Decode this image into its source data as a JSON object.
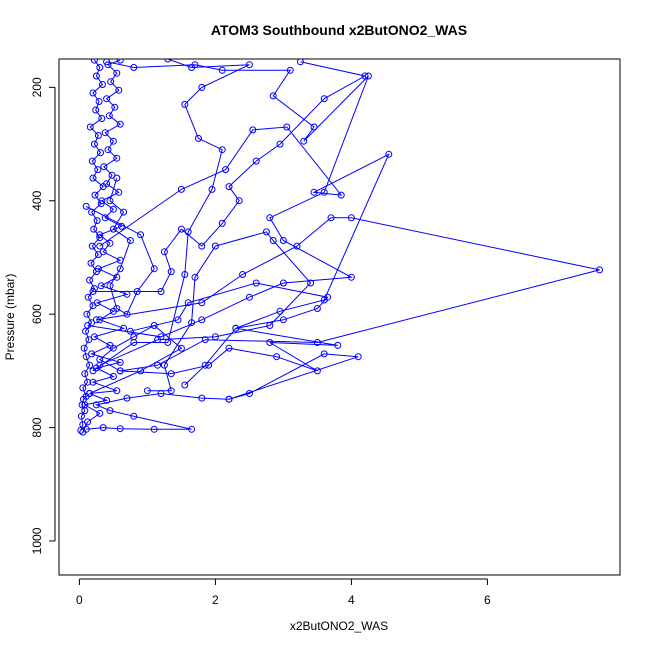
{
  "chart_data": {
    "type": "line",
    "title": "ATOM3 Southbound x2ButONO2_WAS",
    "xlabel": "x2ButONO2_WAS",
    "ylabel": "Pressure (mbar)",
    "xlim": [
      -0.3,
      7.95
    ],
    "ylim": [
      1060,
      150
    ],
    "y_reversed": true,
    "x_ticks": [
      0,
      2,
      4,
      6
    ],
    "x_tick_labels": [
      "0",
      "2",
      "4",
      "6"
    ],
    "y_ticks": [
      200,
      400,
      600,
      800,
      1000
    ],
    "y_tick_labels": [
      "200",
      "400",
      "600",
      "800",
      "1000"
    ],
    "grid": false,
    "legend": "none",
    "colors": {
      "series": "#0000ff",
      "axes": "#000000",
      "background": "#ffffff"
    },
    "marker": "open-circle",
    "series": [
      {
        "points": [
          [
            0.02,
            805
          ],
          [
            0.05,
            795
          ],
          [
            0.03,
            780
          ],
          [
            0.08,
            770
          ],
          [
            0.04,
            760
          ],
          [
            0.06,
            750
          ],
          [
            0.1,
            745
          ],
          [
            0.05,
            730
          ],
          [
            0.12,
            720
          ],
          [
            0.08,
            705
          ],
          [
            0.15,
            690
          ],
          [
            0.1,
            675
          ],
          [
            0.07,
            660
          ],
          [
            0.14,
            645
          ],
          [
            0.09,
            630
          ],
          [
            0.18,
            615
          ],
          [
            0.11,
            600
          ],
          [
            0.2,
            585
          ],
          [
            0.13,
            570
          ],
          [
            0.22,
            555
          ],
          [
            0.15,
            540
          ],
          [
            0.25,
            525
          ],
          [
            0.17,
            510
          ],
          [
            0.28,
            495
          ],
          [
            0.19,
            480
          ],
          [
            0.3,
            465
          ],
          [
            0.21,
            450
          ],
          [
            0.26,
            435
          ],
          [
            0.18,
            420
          ],
          [
            0.32,
            405
          ],
          [
            0.23,
            390
          ],
          [
            0.35,
            375
          ],
          [
            0.2,
            360
          ],
          [
            0.27,
            345
          ],
          [
            0.19,
            330
          ],
          [
            0.31,
            315
          ],
          [
            0.22,
            300
          ],
          [
            0.28,
            285
          ],
          [
            0.16,
            270
          ],
          [
            0.33,
            255
          ],
          [
            0.24,
            240
          ],
          [
            0.29,
            225
          ],
          [
            0.2,
            210
          ],
          [
            0.34,
            195
          ],
          [
            0.25,
            180
          ],
          [
            0.3,
            165
          ],
          [
            0.22,
            152
          ]
        ]
      },
      {
        "points": [
          [
            0.05,
            808
          ],
          [
            0.12,
            790
          ],
          [
            0.3,
            775
          ],
          [
            0.08,
            760
          ],
          [
            0.4,
            752
          ],
          [
            0.15,
            740
          ],
          [
            0.55,
            735
          ],
          [
            0.2,
            720
          ],
          [
            0.5,
            710
          ],
          [
            0.25,
            695
          ],
          [
            0.6,
            685
          ],
          [
            0.18,
            670
          ],
          [
            0.45,
            655
          ],
          [
            0.22,
            640
          ],
          [
            0.65,
            625
          ],
          [
            0.3,
            610
          ],
          [
            0.5,
            595
          ],
          [
            0.26,
            580
          ],
          [
            0.7,
            565
          ],
          [
            0.32,
            550
          ],
          [
            0.55,
            535
          ],
          [
            0.28,
            520
          ],
          [
            0.6,
            505
          ],
          [
            0.35,
            490
          ],
          [
            0.45,
            475
          ],
          [
            0.3,
            460
          ],
          [
            0.62,
            445
          ],
          [
            0.38,
            430
          ],
          [
            0.5,
            415
          ],
          [
            0.33,
            400
          ],
          [
            0.58,
            385
          ],
          [
            0.4,
            370
          ],
          [
            0.48,
            355
          ],
          [
            0.36,
            340
          ],
          [
            0.55,
            325
          ],
          [
            0.42,
            310
          ],
          [
            0.5,
            295
          ],
          [
            0.38,
            280
          ],
          [
            0.6,
            265
          ],
          [
            0.44,
            250
          ],
          [
            0.52,
            235
          ],
          [
            0.4,
            220
          ],
          [
            0.58,
            205
          ],
          [
            0.46,
            190
          ],
          [
            0.55,
            175
          ],
          [
            0.42,
            160
          ],
          [
            0.6,
            152
          ]
        ]
      },
      {
        "points": [
          [
            0.1,
            803
          ],
          [
            0.35,
            800
          ],
          [
            0.6,
            802
          ],
          [
            1.1,
            803
          ],
          [
            1.65,
            803
          ],
          [
            0.8,
            780
          ],
          [
            0.45,
            770
          ],
          [
            0.25,
            760
          ],
          [
            0.7,
            748
          ],
          [
            1.2,
            740
          ],
          [
            1.8,
            748
          ],
          [
            2.2,
            750
          ],
          [
            2.5,
            740
          ],
          [
            3.6,
            670
          ],
          [
            4.1,
            675
          ],
          [
            2.2,
            750
          ]
        ]
      },
      {
        "points": [
          [
            0.15,
            740
          ],
          [
            0.9,
            700
          ],
          [
            1.5,
            660
          ],
          [
            1.1,
            620
          ],
          [
            0.8,
            640
          ],
          [
            0.5,
            660
          ],
          [
            0.3,
            680
          ],
          [
            0.6,
            700
          ],
          [
            1.35,
            705
          ],
          [
            1.9,
            690
          ],
          [
            2.2,
            660
          ],
          [
            2.9,
            675
          ],
          [
            3.5,
            700
          ],
          [
            2.8,
            650
          ],
          [
            3.8,
            655
          ],
          [
            2.3,
            625
          ],
          [
            3.0,
            610
          ],
          [
            3.5,
            590
          ],
          [
            3.65,
            570
          ],
          [
            2.6,
            545
          ],
          [
            1.6,
            580
          ],
          [
            1.45,
            610
          ],
          [
            0.75,
            630
          ]
        ]
      },
      {
        "points": [
          [
            0.12,
            620
          ],
          [
            1.2,
            640
          ],
          [
            1.8,
            610
          ],
          [
            2.5,
            570
          ],
          [
            3.0,
            545
          ],
          [
            4.0,
            535
          ],
          [
            3.0,
            470
          ],
          [
            2.8,
            430
          ],
          [
            3.6,
            385
          ],
          [
            4.25,
            180
          ],
          [
            3.3,
            295
          ],
          [
            3.45,
            270
          ],
          [
            2.85,
            215
          ],
          [
            3.1,
            170
          ],
          [
            2.1,
            170
          ],
          [
            1.7,
            160
          ],
          [
            0.8,
            165
          ],
          [
            0.4,
            155
          ]
        ]
      },
      {
        "points": [
          [
            0.2,
            700
          ],
          [
            0.8,
            650
          ],
          [
            1.3,
            650
          ],
          [
            1.55,
            530
          ],
          [
            1.6,
            455
          ],
          [
            1.95,
            380
          ],
          [
            2.1,
            310
          ],
          [
            1.75,
            290
          ],
          [
            1.55,
            230
          ],
          [
            1.8,
            200
          ],
          [
            2.5,
            160
          ],
          [
            1.65,
            165
          ],
          [
            1.3,
            150
          ]
        ]
      },
      {
        "points": [
          [
            0.3,
            690
          ],
          [
            1.15,
            645
          ],
          [
            2.0,
            640
          ],
          [
            2.8,
            620
          ],
          [
            3.4,
            545
          ],
          [
            2.85,
            470
          ],
          [
            2.75,
            455
          ],
          [
            2.0,
            480
          ],
          [
            1.7,
            535
          ],
          [
            1.65,
            615
          ],
          [
            1.25,
            690
          ],
          [
            1.35,
            735
          ],
          [
            1.0,
            735
          ]
        ]
      },
      {
        "points": [
          [
            0.25,
            610
          ],
          [
            1.8,
            580
          ],
          [
            2.4,
            530
          ],
          [
            3.2,
            480
          ],
          [
            3.7,
            430
          ],
          [
            4.0,
            430
          ],
          [
            7.65,
            522
          ],
          [
            3.5,
            650
          ],
          [
            1.85,
            645
          ],
          [
            1.15,
            690
          ],
          [
            0.6,
            700
          ]
        ]
      },
      {
        "points": [
          [
            0.3,
            480
          ],
          [
            1.5,
            380
          ],
          [
            2.15,
            345
          ],
          [
            2.55,
            275
          ],
          [
            3.05,
            270
          ],
          [
            3.85,
            390
          ],
          [
            3.45,
            385
          ],
          [
            4.55,
            318
          ],
          [
            3.6,
            575
          ],
          [
            2.95,
            595
          ],
          [
            2.3,
            625
          ],
          [
            1.85,
            690
          ],
          [
            1.55,
            725
          ]
        ]
      },
      {
        "points": [
          [
            0.2,
            560
          ],
          [
            1.2,
            560
          ],
          [
            1.35,
            525
          ],
          [
            1.25,
            490
          ],
          [
            1.5,
            450
          ],
          [
            1.8,
            480
          ],
          [
            2.1,
            440
          ],
          [
            2.35,
            400
          ],
          [
            2.2,
            375
          ],
          [
            2.6,
            330
          ],
          [
            2.95,
            300
          ],
          [
            3.6,
            220
          ],
          [
            4.2,
            180
          ],
          [
            3.25,
            155
          ]
        ]
      },
      {
        "points": [
          [
            0.1,
            410
          ],
          [
            0.9,
            460
          ],
          [
            1.1,
            520
          ],
          [
            0.85,
            560
          ],
          [
            0.7,
            600
          ],
          [
            0.55,
            590
          ],
          [
            0.45,
            550
          ],
          [
            0.6,
            520
          ],
          [
            0.75,
            470
          ],
          [
            0.5,
            450
          ],
          [
            0.65,
            420
          ],
          [
            0.45,
            400
          ],
          [
            0.55,
            360
          ]
        ]
      }
    ]
  }
}
